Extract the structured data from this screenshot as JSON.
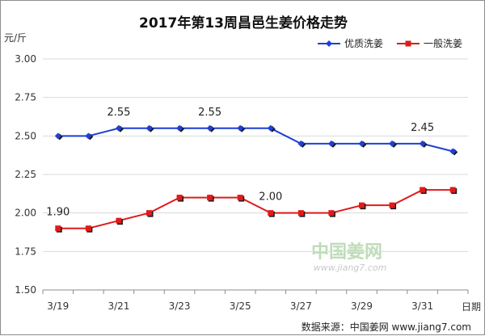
{
  "chart_data": {
    "type": "line",
    "title": "2017年第13周昌邑生姜价格走势",
    "ylabel": "元/斤",
    "xlabel": "日期",
    "ylim": [
      1.5,
      3.0
    ],
    "yticks": [
      "1.50",
      "1.75",
      "2.00",
      "2.25",
      "2.50",
      "2.75",
      "3.00"
    ],
    "x": [
      "3/19",
      "3/20",
      "3/21",
      "3/22",
      "3/23",
      "3/24",
      "3/25",
      "3/26",
      "3/27",
      "3/28",
      "3/29",
      "3/30",
      "3/31",
      "4/1"
    ],
    "xtick_labels": [
      "3/19",
      "3/21",
      "3/23",
      "3/25",
      "3/27",
      "3/29",
      "3/31"
    ],
    "series": [
      {
        "name": "优质洗姜",
        "color": "#1f3fd6",
        "marker": "diamond",
        "values": [
          2.5,
          2.5,
          2.55,
          2.55,
          2.55,
          2.55,
          2.55,
          2.55,
          2.45,
          2.45,
          2.45,
          2.45,
          2.45,
          2.4
        ]
      },
      {
        "name": "一般洗姜",
        "color": "#e01a1a",
        "marker": "square",
        "values": [
          1.9,
          1.9,
          1.95,
          2.0,
          2.1,
          2.1,
          2.1,
          2.0,
          2.0,
          2.0,
          2.05,
          2.05,
          2.15,
          2.15
        ]
      }
    ],
    "annotations": [
      {
        "text": "2.55",
        "series": 0,
        "index": 2
      },
      {
        "text": "2.55",
        "series": 0,
        "index": 5
      },
      {
        "text": "2.45",
        "series": 0,
        "index": 12
      },
      {
        "text": "1.90",
        "series": 1,
        "index": 0
      },
      {
        "text": "2.00",
        "series": 1,
        "index": 7
      }
    ],
    "grid": true,
    "legend": "top-right"
  },
  "watermark": {
    "brand": "中国姜网",
    "url": "www.jiang7.com"
  },
  "source": "数据来源：中国姜网 www.jiang7.com"
}
